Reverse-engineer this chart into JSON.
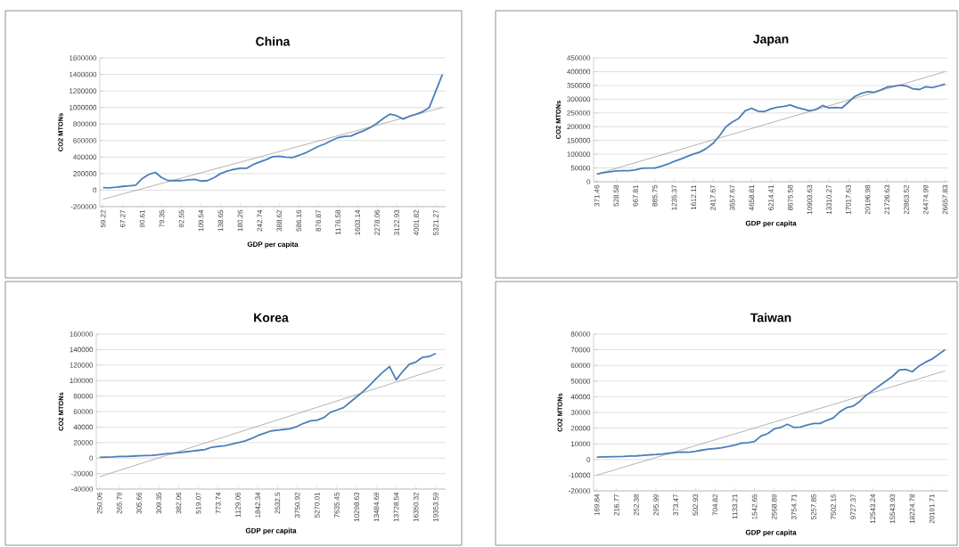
{
  "chart_data": [
    {
      "type": "line",
      "title": "China",
      "xlabel": "GDP per capita",
      "ylabel": "CO2 MTONs",
      "grid": "y",
      "ylim": [
        -200000,
        1600000
      ],
      "yticks": [
        -200000,
        0,
        200000,
        400000,
        600000,
        800000,
        1000000,
        1200000,
        1400000,
        1600000
      ],
      "categories": [
        "59.22",
        null,
        null,
        "67.27",
        null,
        null,
        "90.61",
        null,
        null,
        "79.35",
        null,
        null,
        "92.55",
        null,
        null,
        "109.54",
        null,
        null,
        "138.65",
        null,
        null,
        "180.26",
        null,
        null,
        "242.74",
        null,
        null,
        "388.62",
        null,
        null,
        "586.16",
        null,
        null,
        "876.87",
        null,
        null,
        "1176.58",
        null,
        null,
        "1603.14",
        null,
        null,
        "2278.06",
        null,
        null,
        "3122.93",
        null,
        null,
        "4001.82",
        null,
        null,
        "5321.27",
        null
      ],
      "series": [
        {
          "color": "#4a7ebb",
          "values": [
            30000,
            28000,
            35000,
            45000,
            52000,
            60000,
            140000,
            190000,
            215000,
            150000,
            115000,
            115000,
            115000,
            125000,
            130000,
            110000,
            115000,
            150000,
            200000,
            230000,
            250000,
            265000,
            265000,
            310000,
            340000,
            370000,
            405000,
            410000,
            400000,
            395000,
            420000,
            450000,
            490000,
            530000,
            560000,
            600000,
            635000,
            650000,
            655000,
            690000,
            720000,
            760000,
            810000,
            870000,
            920000,
            900000,
            860000,
            895000,
            920000,
            950000,
            1000000,
            1200000,
            1400000
          ]
        },
        {
          "type": "line",
          "color": "#7f7f7f",
          "values": [
            -110000,
            null,
            null,
            null,
            null,
            null,
            null,
            null,
            null,
            null,
            null,
            null,
            null,
            null,
            null,
            null,
            null,
            null,
            null,
            null,
            null,
            null,
            null,
            null,
            null,
            null,
            null,
            null,
            null,
            null,
            null,
            null,
            null,
            null,
            null,
            null,
            null,
            null,
            null,
            null,
            null,
            null,
            null,
            null,
            null,
            null,
            null,
            null,
            null,
            null,
            null,
            null,
            1000000
          ]
        }
      ]
    },
    {
      "type": "line",
      "title": "Japan",
      "xlabel": "GDP per capita",
      "ylabel": "CO2 MTONs",
      "grid": "y",
      "ylim": [
        0,
        450000
      ],
      "yticks": [
        0,
        50000,
        100000,
        150000,
        200000,
        250000,
        300000,
        350000,
        400000,
        450000
      ],
      "categories": [
        "371.46",
        null,
        null,
        "528.58",
        null,
        null,
        "667.81",
        null,
        null,
        "885.75",
        null,
        null,
        "1235.37",
        null,
        null,
        "1612.11",
        null,
        null,
        "2417.67",
        null,
        null,
        "3557.67",
        null,
        null,
        "4658.81",
        null,
        null,
        "6214.41",
        null,
        null,
        "8675.58",
        null,
        null,
        "10903.63",
        null,
        null,
        "13310.27",
        null,
        null,
        "17017.63",
        null,
        null,
        "20196.98",
        null,
        null,
        "21726.63",
        null,
        null,
        "22863.52",
        null,
        null,
        "24474.99",
        null,
        null,
        "26657.83"
      ],
      "series": [
        {
          "color": "#4a7ebb",
          "values": [
            28000,
            33000,
            36000,
            39000,
            40000,
            40000,
            43000,
            49000,
            50000,
            50000,
            56000,
            64000,
            74000,
            82000,
            92000,
            101000,
            108000,
            121000,
            139000,
            166000,
            199000,
            217000,
            230000,
            258000,
            267000,
            256000,
            255000,
            265000,
            271000,
            274000,
            279000,
            270000,
            264000,
            258000,
            263000,
            277000,
            268000,
            270000,
            268000,
            289000,
            310000,
            321000,
            327000,
            325000,
            333000,
            344000,
            347000,
            351000,
            348000,
            338000,
            335000,
            345000,
            342000,
            348000,
            355000
          ]
        },
        {
          "type": "line",
          "color": "#7f7f7f",
          "values": [
            28000,
            null,
            null,
            null,
            null,
            null,
            null,
            null,
            null,
            null,
            null,
            null,
            null,
            null,
            null,
            null,
            null,
            null,
            null,
            null,
            null,
            null,
            null,
            null,
            null,
            null,
            null,
            null,
            null,
            null,
            null,
            null,
            null,
            null,
            null,
            null,
            null,
            null,
            null,
            null,
            null,
            null,
            null,
            null,
            null,
            null,
            null,
            null,
            null,
            null,
            null,
            null,
            null,
            null,
            400000
          ]
        }
      ]
    },
    {
      "type": "line",
      "title": "Korea",
      "xlabel": "GDP per capita",
      "ylabel": "CO2 MTONs",
      "grid": "y",
      "ylim": [
        -40000,
        160000
      ],
      "yticks": [
        -40000,
        -20000,
        0,
        20000,
        40000,
        60000,
        80000,
        100000,
        120000,
        140000,
        160000
      ],
      "categories": [
        "250.06",
        null,
        null,
        "265.79",
        null,
        null,
        "305.66",
        null,
        null,
        "309.35",
        null,
        null,
        "382.06",
        null,
        null,
        "519.07",
        null,
        null,
        "773.74",
        null,
        null,
        "1129.06",
        null,
        null,
        "1842.34",
        null,
        null,
        "2532.5",
        null,
        null,
        "3750.92",
        null,
        null,
        "5270.01",
        null,
        null,
        "7635.45",
        null,
        null,
        "10298.63",
        null,
        null,
        "13484.69",
        null,
        null,
        "13728.54",
        null,
        null,
        "16350.32",
        null,
        null,
        "19353.59",
        null
      ],
      "series": [
        {
          "color": "#4a7ebb",
          "values": [
            1000,
            1200,
            1500,
            2000,
            2200,
            2500,
            3000,
            3200,
            3500,
            4500,
            5500,
            6000,
            7000,
            8000,
            9000,
            10000,
            11000,
            14000,
            15000,
            16000,
            18000,
            20000,
            22000,
            25000,
            29000,
            32000,
            35000,
            36000,
            37000,
            38000,
            41000,
            45000,
            48000,
            49000,
            52000,
            59000,
            62000,
            65000,
            72000,
            79000,
            86000,
            94000,
            103000,
            111000,
            118000,
            101000,
            112000,
            121000,
            124000,
            130000,
            131000,
            135000,
            null
          ]
        },
        {
          "type": "line",
          "color": "#7f7f7f",
          "values": [
            -24000,
            null,
            null,
            null,
            null,
            null,
            null,
            null,
            null,
            null,
            null,
            null,
            null,
            null,
            null,
            null,
            null,
            null,
            null,
            null,
            null,
            null,
            null,
            null,
            null,
            null,
            null,
            null,
            null,
            null,
            null,
            null,
            null,
            null,
            null,
            null,
            null,
            null,
            null,
            null,
            null,
            null,
            null,
            null,
            null,
            null,
            null,
            null,
            null,
            null,
            null,
            null,
            117000
          ]
        }
      ]
    },
    {
      "type": "line",
      "title": "Taiwan",
      "xlabel": "GDP per capita",
      "ylabel": "CO2 MTONs",
      "grid": "y",
      "ylim": [
        -20000,
        80000
      ],
      "yticks": [
        -20000,
        -10000,
        0,
        10000,
        20000,
        30000,
        40000,
        50000,
        60000,
        70000,
        80000
      ],
      "categories": [
        "169.84",
        null,
        null,
        "216.77",
        null,
        null,
        "252.38",
        null,
        null,
        "295.99",
        null,
        null,
        "373.47",
        null,
        null,
        "502.93",
        null,
        null,
        "704.82",
        null,
        null,
        "1133.21",
        null,
        null,
        "1542.65",
        null,
        null,
        "2568.89",
        null,
        null,
        "3754.71",
        null,
        null,
        "5257.85",
        null,
        null,
        "7502.15",
        null,
        null,
        "9727.37",
        null,
        null,
        "12543.24",
        null,
        null,
        "15543.93",
        null,
        null,
        "18224.78",
        null,
        null,
        "20191.71",
        null,
        null
      ],
      "series": [
        {
          "color": "#4a7ebb",
          "values": [
            1500,
            1700,
            1800,
            1900,
            2000,
            2200,
            2300,
            2600,
            3000,
            3200,
            3500,
            4000,
            4500,
            4800,
            4700,
            5200,
            6000,
            6600,
            7000,
            7500,
            8300,
            9200,
            10500,
            10800,
            11500,
            15000,
            16500,
            19500,
            20500,
            22500,
            20500,
            20700,
            22000,
            23000,
            23000,
            25000,
            26500,
            30500,
            33000,
            34000,
            37000,
            41000,
            44000,
            47000,
            50000,
            53000,
            57000,
            57500,
            56000,
            59500,
            62000,
            64000,
            67000,
            70000
          ]
        },
        {
          "type": "line",
          "color": "#7f7f7f",
          "values": [
            -10000,
            null,
            null,
            null,
            null,
            null,
            null,
            null,
            null,
            null,
            null,
            null,
            null,
            null,
            null,
            null,
            null,
            null,
            null,
            null,
            null,
            null,
            null,
            null,
            null,
            null,
            null,
            null,
            null,
            null,
            null,
            null,
            null,
            null,
            null,
            null,
            null,
            null,
            null,
            null,
            null,
            null,
            null,
            null,
            null,
            null,
            null,
            null,
            null,
            null,
            null,
            null,
            null,
            56500
          ]
        }
      ]
    }
  ]
}
